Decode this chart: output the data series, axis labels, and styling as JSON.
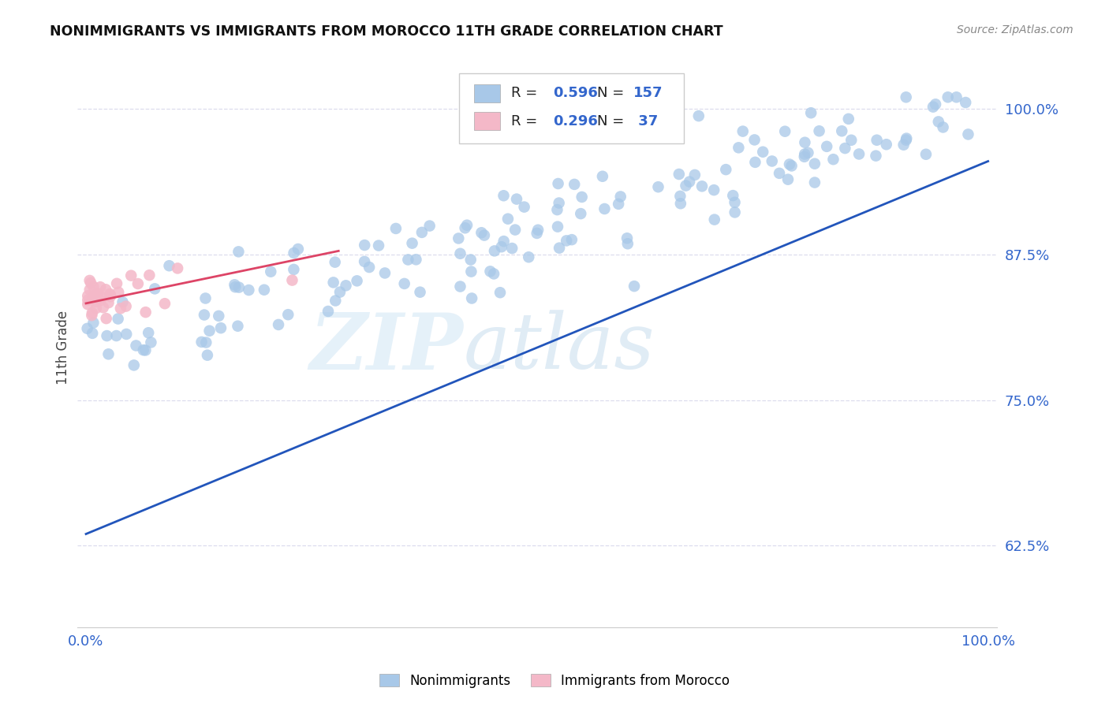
{
  "title": "NONIMMIGRANTS VS IMMIGRANTS FROM MOROCCO 11TH GRADE CORRELATION CHART",
  "source": "Source: ZipAtlas.com",
  "ylabel": "11th Grade",
  "xlim": [
    -0.01,
    1.01
  ],
  "ylim": [
    0.555,
    1.035
  ],
  "yticks": [
    0.625,
    0.75,
    0.875,
    1.0
  ],
  "ytick_labels": [
    "62.5%",
    "75.0%",
    "87.5%",
    "100.0%"
  ],
  "xtick_labels": [
    "0.0%",
    "100.0%"
  ],
  "background_color": "#ffffff",
  "watermark_zip": "ZIP",
  "watermark_atlas": "atlas",
  "legend_R1": "0.596",
  "legend_N1": "157",
  "legend_R2": "0.296",
  "legend_N2": "37",
  "blue_color": "#a8c8e8",
  "pink_color": "#f4b8c8",
  "line_blue": "#2255bb",
  "line_pink": "#dd4466",
  "title_color": "#111111",
  "axis_label_color": "#3366cc",
  "grid_color": "#ddddee",
  "blue_line_x0": 0.0,
  "blue_line_y0": 0.635,
  "blue_line_x1": 1.0,
  "blue_line_y1": 0.955,
  "pink_line_x0": 0.0,
  "pink_line_y0": 0.833,
  "pink_line_x1": 0.28,
  "pink_line_y1": 0.878
}
